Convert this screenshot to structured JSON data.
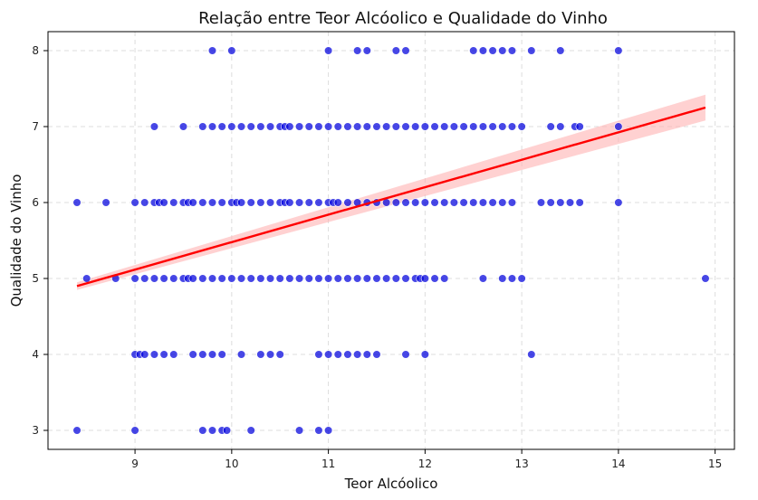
{
  "chart_data": {
    "type": "scatter",
    "title": "Relação entre Teor Alcóolico e Qualidade do Vinho",
    "xlabel": "Teor Alcóolico",
    "ylabel": "Qualidade do Vinho",
    "xlim": [
      8.1,
      15.2
    ],
    "ylim": [
      2.75,
      8.25
    ],
    "xticks": [
      9,
      10,
      11,
      12,
      13,
      14,
      15
    ],
    "yticks": [
      3,
      4,
      5,
      6,
      7,
      8
    ],
    "grid": true,
    "point_color": "#0000dd",
    "line_color": "#ff0000",
    "band_color": "#ffb3b3",
    "regression": {
      "x": [
        8.4,
        14.9
      ],
      "y": [
        4.9,
        7.25
      ],
      "ci_halfwidth_start": 0.05,
      "ci_halfwidth_end": 0.17
    },
    "points": [
      {
        "q": 8,
        "x": [
          9.8,
          10.0,
          11.0,
          11.3,
          11.4,
          11.7,
          11.8,
          12.5,
          12.6,
          12.7,
          12.8,
          12.9,
          13.1,
          13.4,
          14.0
        ]
      },
      {
        "q": 7,
        "x": [
          9.2,
          9.5,
          9.7,
          9.8,
          9.9,
          10.0,
          10.1,
          10.2,
          10.3,
          10.4,
          10.5,
          10.55,
          10.6,
          10.7,
          10.8,
          10.9,
          11.0,
          11.1,
          11.2,
          11.3,
          11.4,
          11.5,
          11.6,
          11.7,
          11.8,
          11.9,
          12.0,
          12.1,
          12.2,
          12.3,
          12.4,
          12.5,
          12.6,
          12.7,
          12.8,
          12.9,
          13.0,
          13.3,
          13.4,
          13.55,
          13.6,
          14.0
        ]
      },
      {
        "q": 6,
        "x": [
          8.4,
          8.7,
          9.0,
          9.1,
          9.2,
          9.25,
          9.3,
          9.4,
          9.5,
          9.55,
          9.6,
          9.7,
          9.8,
          9.9,
          10.0,
          10.05,
          10.1,
          10.2,
          10.3,
          10.4,
          10.5,
          10.55,
          10.6,
          10.7,
          10.8,
          10.9,
          11.0,
          11.05,
          11.1,
          11.2,
          11.3,
          11.4,
          11.5,
          11.6,
          11.7,
          11.8,
          11.9,
          12.0,
          12.1,
          12.2,
          12.3,
          12.4,
          12.5,
          12.6,
          12.7,
          12.8,
          12.9,
          13.2,
          13.3,
          13.4,
          13.5,
          13.6,
          14.0
        ]
      },
      {
        "q": 5,
        "x": [
          8.5,
          8.8,
          9.0,
          9.1,
          9.2,
          9.3,
          9.4,
          9.5,
          9.55,
          9.6,
          9.7,
          9.8,
          9.9,
          10.0,
          10.1,
          10.2,
          10.3,
          10.4,
          10.5,
          10.6,
          10.7,
          10.8,
          10.9,
          11.0,
          11.1,
          11.2,
          11.3,
          11.4,
          11.5,
          11.6,
          11.7,
          11.8,
          11.9,
          11.95,
          12.0,
          12.1,
          12.2,
          12.6,
          12.8,
          12.9,
          13.0,
          14.9
        ]
      },
      {
        "q": 4,
        "x": [
          9.0,
          9.05,
          9.1,
          9.2,
          9.3,
          9.4,
          9.6,
          9.7,
          9.8,
          9.9,
          10.1,
          10.3,
          10.4,
          10.5,
          10.9,
          11.0,
          11.1,
          11.2,
          11.3,
          11.4,
          11.5,
          11.8,
          12.0,
          13.1
        ]
      },
      {
        "q": 3,
        "x": [
          8.4,
          9.0,
          9.7,
          9.8,
          9.9,
          9.95,
          10.2,
          10.7,
          10.9,
          11.0
        ]
      }
    ]
  }
}
